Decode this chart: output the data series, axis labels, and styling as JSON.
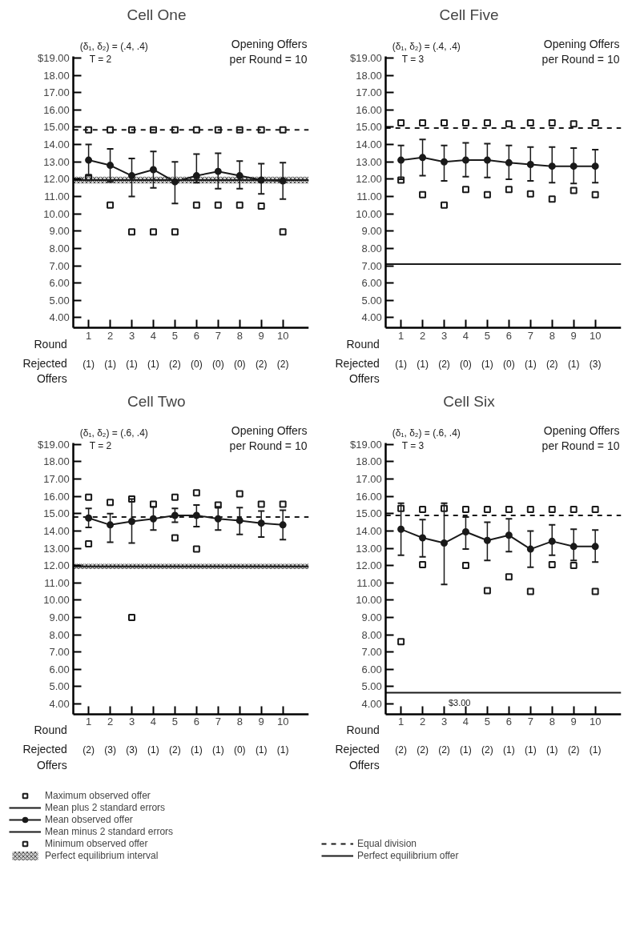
{
  "chart_data": [
    {
      "type": "line",
      "title": "Cell One",
      "subtitle": "(δ₁, δ₂) = (.4, .4)",
      "xlabel": "Round",
      "categories": [
        "1",
        "2",
        "3",
        "4",
        "5",
        "6",
        "7",
        "8",
        "9",
        "10"
      ],
      "ylim": [
        3.4,
        19.1
      ],
      "yticks": [
        {
          "value": 4,
          "label": "4.00"
        },
        {
          "value": 5,
          "label": "5.00"
        },
        {
          "value": 6,
          "label": "6.00"
        },
        {
          "value": 7,
          "label": "7.00"
        },
        {
          "value": 8,
          "label": "8.00"
        },
        {
          "value": 9,
          "label": "9.00"
        },
        {
          "value": 10,
          "label": "10.00"
        },
        {
          "value": 11,
          "label": "11.00"
        },
        {
          "value": 12,
          "label": "12.00"
        },
        {
          "value": 13,
          "label": "13.00"
        },
        {
          "value": 14,
          "label": "14.00"
        },
        {
          "value": 15,
          "label": "15.00"
        },
        {
          "value": 16,
          "label": "16.00"
        },
        {
          "value": 17,
          "label": "17.00"
        },
        {
          "value": 18,
          "label": "18.00"
        },
        {
          "value": 19,
          "label": "$19.00"
        }
      ],
      "series": [
        {
          "type": "scatter",
          "marker": "square",
          "color": "#1a1a1a",
          "values": [
            14.85,
            14.85,
            14.85,
            14.85,
            14.85,
            14.85,
            14.85,
            14.85,
            14.85,
            14.85
          ]
        },
        {
          "marker": "circle",
          "color": "#1a1a1a",
          "values": [
            13.1,
            12.8,
            12.2,
            12.55,
            11.85,
            12.2,
            12.45,
            12.2,
            11.95,
            11.9
          ],
          "errors": [
            [
              12.2,
              14.0
            ],
            [
              11.85,
              13.75
            ],
            [
              11.0,
              13.2
            ],
            [
              11.5,
              13.6
            ],
            [
              10.6,
              13.0
            ],
            [
              11.8,
              13.45
            ],
            [
              11.45,
              13.5
            ],
            [
              11.45,
              13.05
            ],
            [
              11.15,
              12.9
            ],
            [
              10.85,
              12.95
            ]
          ]
        },
        {
          "type": "scatter",
          "marker": "square",
          "color": "#1a1a1a",
          "values": [
            12.1,
            10.5,
            8.95,
            8.95,
            8.95,
            10.5,
            10.5,
            10.5,
            10.45,
            8.95
          ]
        }
      ],
      "ref_lines": [
        {
          "axis": "y",
          "value": 14.85,
          "line_style": "dashed",
          "color": "#1a1a1a"
        },
        {
          "axis": "y",
          "value": 11.95,
          "line_style": "solid",
          "color": "#1a1a1a"
        }
      ],
      "bands": [
        {
          "axis": "y",
          "from": 11.75,
          "to": 12.15,
          "color": "#999999"
        }
      ],
      "annotations": [
        "T = 2",
        "Opening Offers per Round = 10",
        "Rejected Offers",
        "(1)",
        "(1)",
        "(1)",
        "(1)",
        "(2)",
        "(0)",
        "(0)",
        "(0)",
        "(2)",
        "(2)"
      ]
    },
    {
      "type": "line",
      "title": "Cell Five",
      "subtitle": "(δ₁, δ₂) = (.4, .4)",
      "xlabel": "Round",
      "categories": [
        "1",
        "2",
        "3",
        "4",
        "5",
        "6",
        "7",
        "8",
        "9",
        "10"
      ],
      "ylim": [
        3.4,
        19.1
      ],
      "yticks": [
        {
          "value": 4,
          "label": "4.00"
        },
        {
          "value": 5,
          "label": "5.00"
        },
        {
          "value": 6,
          "label": "6.00"
        },
        {
          "value": 7,
          "label": "7.00"
        },
        {
          "value": 8,
          "label": "8.00"
        },
        {
          "value": 9,
          "label": "9.00"
        },
        {
          "value": 10,
          "label": "10.00"
        },
        {
          "value": 11,
          "label": "11.00"
        },
        {
          "value": 12,
          "label": "12.00"
        },
        {
          "value": 13,
          "label": "13.00"
        },
        {
          "value": 14,
          "label": "14.00"
        },
        {
          "value": 15,
          "label": "15.00"
        },
        {
          "value": 16,
          "label": "16.00"
        },
        {
          "value": 17,
          "label": "17.00"
        },
        {
          "value": 18,
          "label": "18.00"
        },
        {
          "value": 19,
          "label": "$19.00"
        }
      ],
      "series": [
        {
          "type": "scatter",
          "marker": "square",
          "color": "#1a1a1a",
          "values": [
            15.25,
            15.25,
            15.25,
            15.25,
            15.25,
            15.2,
            15.25,
            15.25,
            15.2,
            15.25
          ]
        },
        {
          "marker": "circle",
          "color": "#1a1a1a",
          "values": [
            13.1,
            13.25,
            13.0,
            13.1,
            13.1,
            12.95,
            12.85,
            12.75,
            12.75,
            12.75
          ],
          "errors": [
            [
              12.0,
              13.95
            ],
            [
              12.2,
              14.3
            ],
            [
              11.9,
              13.95
            ],
            [
              12.15,
              14.1
            ],
            [
              12.1,
              14.05
            ],
            [
              12.0,
              13.95
            ],
            [
              11.9,
              13.85
            ],
            [
              11.8,
              13.85
            ],
            [
              11.75,
              13.8
            ],
            [
              11.8,
              13.7
            ]
          ]
        },
        {
          "type": "scatter",
          "marker": "square",
          "color": "#1a1a1a",
          "values": [
            11.95,
            11.1,
            10.5,
            11.4,
            11.1,
            11.4,
            11.15,
            10.85,
            11.35,
            11.1
          ]
        }
      ],
      "ref_lines": [
        {
          "axis": "y",
          "value": 14.95,
          "line_style": "dashed",
          "color": "#1a1a1a"
        },
        {
          "axis": "y",
          "value": 7.1,
          "line_style": "solid",
          "color": "#1a1a1a"
        }
      ],
      "annotations": [
        "T = 3",
        "Opening Offers per Round = 10",
        "Rejected Offers",
        "(1)",
        "(1)",
        "(2)",
        "(0)",
        "(1)",
        "(0)",
        "(1)",
        "(2)",
        "(1)",
        "(3)"
      ]
    },
    {
      "type": "line",
      "title": "Cell Two",
      "subtitle": "(δ₁, δ₂) = (.6, .4)",
      "xlabel": "Round",
      "categories": [
        "1",
        "2",
        "3",
        "4",
        "5",
        "6",
        "7",
        "8",
        "9",
        "10"
      ],
      "ylim": [
        3.4,
        19.1
      ],
      "yticks": [
        {
          "value": 4,
          "label": "4.00"
        },
        {
          "value": 5,
          "label": "5.00"
        },
        {
          "value": 6,
          "label": "6.00"
        },
        {
          "value": 7,
          "label": "7.00"
        },
        {
          "value": 8,
          "label": "8.00"
        },
        {
          "value": 9,
          "label": "9.00"
        },
        {
          "value": 10,
          "label": "10.00"
        },
        {
          "value": 11,
          "label": "11.00"
        },
        {
          "value": 12,
          "label": "12.00"
        },
        {
          "value": 13,
          "label": "13.00"
        },
        {
          "value": 14,
          "label": "14.00"
        },
        {
          "value": 15,
          "label": "15.00"
        },
        {
          "value": 16,
          "label": "16.00"
        },
        {
          "value": 17,
          "label": "17.00"
        },
        {
          "value": 18,
          "label": "18.00"
        },
        {
          "value": 19,
          "label": "$19.00"
        }
      ],
      "legend": "bottom",
      "series": [
        {
          "name": "Maximum observed offer",
          "type": "scatter",
          "marker": "square",
          "color": "#1a1a1a",
          "values": [
            15.95,
            15.65,
            15.85,
            15.55,
            15.95,
            16.2,
            15.5,
            16.15,
            15.55,
            15.55
          ]
        },
        {
          "name": "Mean observed offer",
          "marker": "circle",
          "color": "#1a1a1a",
          "values": [
            14.75,
            14.35,
            14.55,
            14.7,
            14.9,
            14.9,
            14.7,
            14.6,
            14.45,
            14.35
          ],
          "errors": [
            [
              14.2,
              15.3
            ],
            [
              13.35,
              15.0
            ],
            [
              13.3,
              15.85
            ],
            [
              14.05,
              15.4
            ],
            [
              14.5,
              15.3
            ],
            [
              14.25,
              15.5
            ],
            [
              14.05,
              15.4
            ],
            [
              13.8,
              15.35
            ],
            [
              13.65,
              15.15
            ],
            [
              13.5,
              15.2
            ]
          ]
        },
        {
          "name": "Minimum observed offer",
          "type": "scatter",
          "marker": "square",
          "color": "#1a1a1a",
          "values": [
            13.25,
            null,
            9.0,
            null,
            13.6,
            12.95,
            null,
            null,
            null,
            null
          ]
        }
      ],
      "ref_lines": [
        {
          "axis": "y",
          "value": 14.8,
          "line_style": "dashed",
          "color": "#1a1a1a"
        },
        {
          "axis": "y",
          "value": 11.95,
          "line_style": "solid",
          "color": "#1a1a1a"
        }
      ],
      "bands": [
        {
          "axis": "y",
          "from": 11.8,
          "to": 12.1,
          "color": "#999999",
          "label": "Perfect equilibrium interval"
        }
      ],
      "annotations": [
        "T = 2",
        "Opening Offers per Round = 10",
        "Rejected Offers",
        "(2)",
        "(3)",
        "(3)",
        "(1)",
        "(2)",
        "(1)",
        "(1)",
        "(0)",
        "(1)",
        "(1)",
        "Mean plus 2 standard errors",
        "Mean minus 2 standard errors"
      ]
    },
    {
      "type": "line",
      "title": "Cell Six",
      "subtitle": "(δ₁, δ₂) = (.6, .4)",
      "xlabel": "Round",
      "categories": [
        "1",
        "2",
        "3",
        "4",
        "5",
        "6",
        "7",
        "8",
        "9",
        "10"
      ],
      "ylim": [
        3.4,
        19.1
      ],
      "yticks": [
        {
          "value": 4,
          "label": "4.00"
        },
        {
          "value": 5,
          "label": "5.00"
        },
        {
          "value": 6,
          "label": "6.00"
        },
        {
          "value": 7,
          "label": "7.00"
        },
        {
          "value": 8,
          "label": "8.00"
        },
        {
          "value": 9,
          "label": "9.00"
        },
        {
          "value": 10,
          "label": "10.00"
        },
        {
          "value": 11,
          "label": "11.00"
        },
        {
          "value": 12,
          "label": "12.00"
        },
        {
          "value": 13,
          "label": "13.00"
        },
        {
          "value": 14,
          "label": "14.00"
        },
        {
          "value": 15,
          "label": "15.00"
        },
        {
          "value": 16,
          "label": "16.00"
        },
        {
          "value": 17,
          "label": "17.00"
        },
        {
          "value": 18,
          "label": "18.00"
        },
        {
          "value": 19,
          "label": "$19.00"
        }
      ],
      "legend": "bottom",
      "series": [
        {
          "type": "scatter",
          "marker": "square",
          "color": "#1a1a1a",
          "values": [
            15.3,
            15.25,
            15.3,
            15.25,
            15.25,
            15.25,
            15.25,
            15.25,
            15.25,
            15.25
          ]
        },
        {
          "marker": "circle",
          "color": "#1a1a1a",
          "values": [
            14.1,
            13.6,
            13.3,
            13.95,
            13.45,
            13.75,
            12.95,
            13.4,
            13.1,
            13.1
          ],
          "errors": [
            [
              12.6,
              15.6
            ],
            [
              12.5,
              14.65
            ],
            [
              10.9,
              15.6
            ],
            [
              12.95,
              14.8
            ],
            [
              12.3,
              14.5
            ],
            [
              12.8,
              14.7
            ],
            [
              11.9,
              14.0
            ],
            [
              12.6,
              14.35
            ],
            [
              12.3,
              14.1
            ],
            [
              12.2,
              14.05
            ]
          ]
        },
        {
          "type": "scatter",
          "marker": "square",
          "color": "#1a1a1a",
          "values": [
            7.6,
            12.05,
            null,
            12.0,
            10.55,
            11.35,
            10.5,
            12.05,
            12.0,
            10.5
          ]
        }
      ],
      "ref_lines": [
        {
          "axis": "y",
          "value": 14.9,
          "line_style": "dashed",
          "color": "#1a1a1a",
          "label": "Equal division"
        },
        {
          "axis": "y",
          "value": 4.65,
          "line_style": "solid",
          "color": "#1a1a1a",
          "label": "Perfect equilibrium offer"
        }
      ],
      "annotations": [
        "T = 3",
        "Opening Offers per Round = 10",
        "Rejected Offers",
        "(2)",
        "(2)",
        "(2)",
        "(1)",
        "(2)",
        "(1)",
        "(1)",
        "(1)",
        "(2)",
        "(1)",
        "$3.00"
      ]
    }
  ]
}
